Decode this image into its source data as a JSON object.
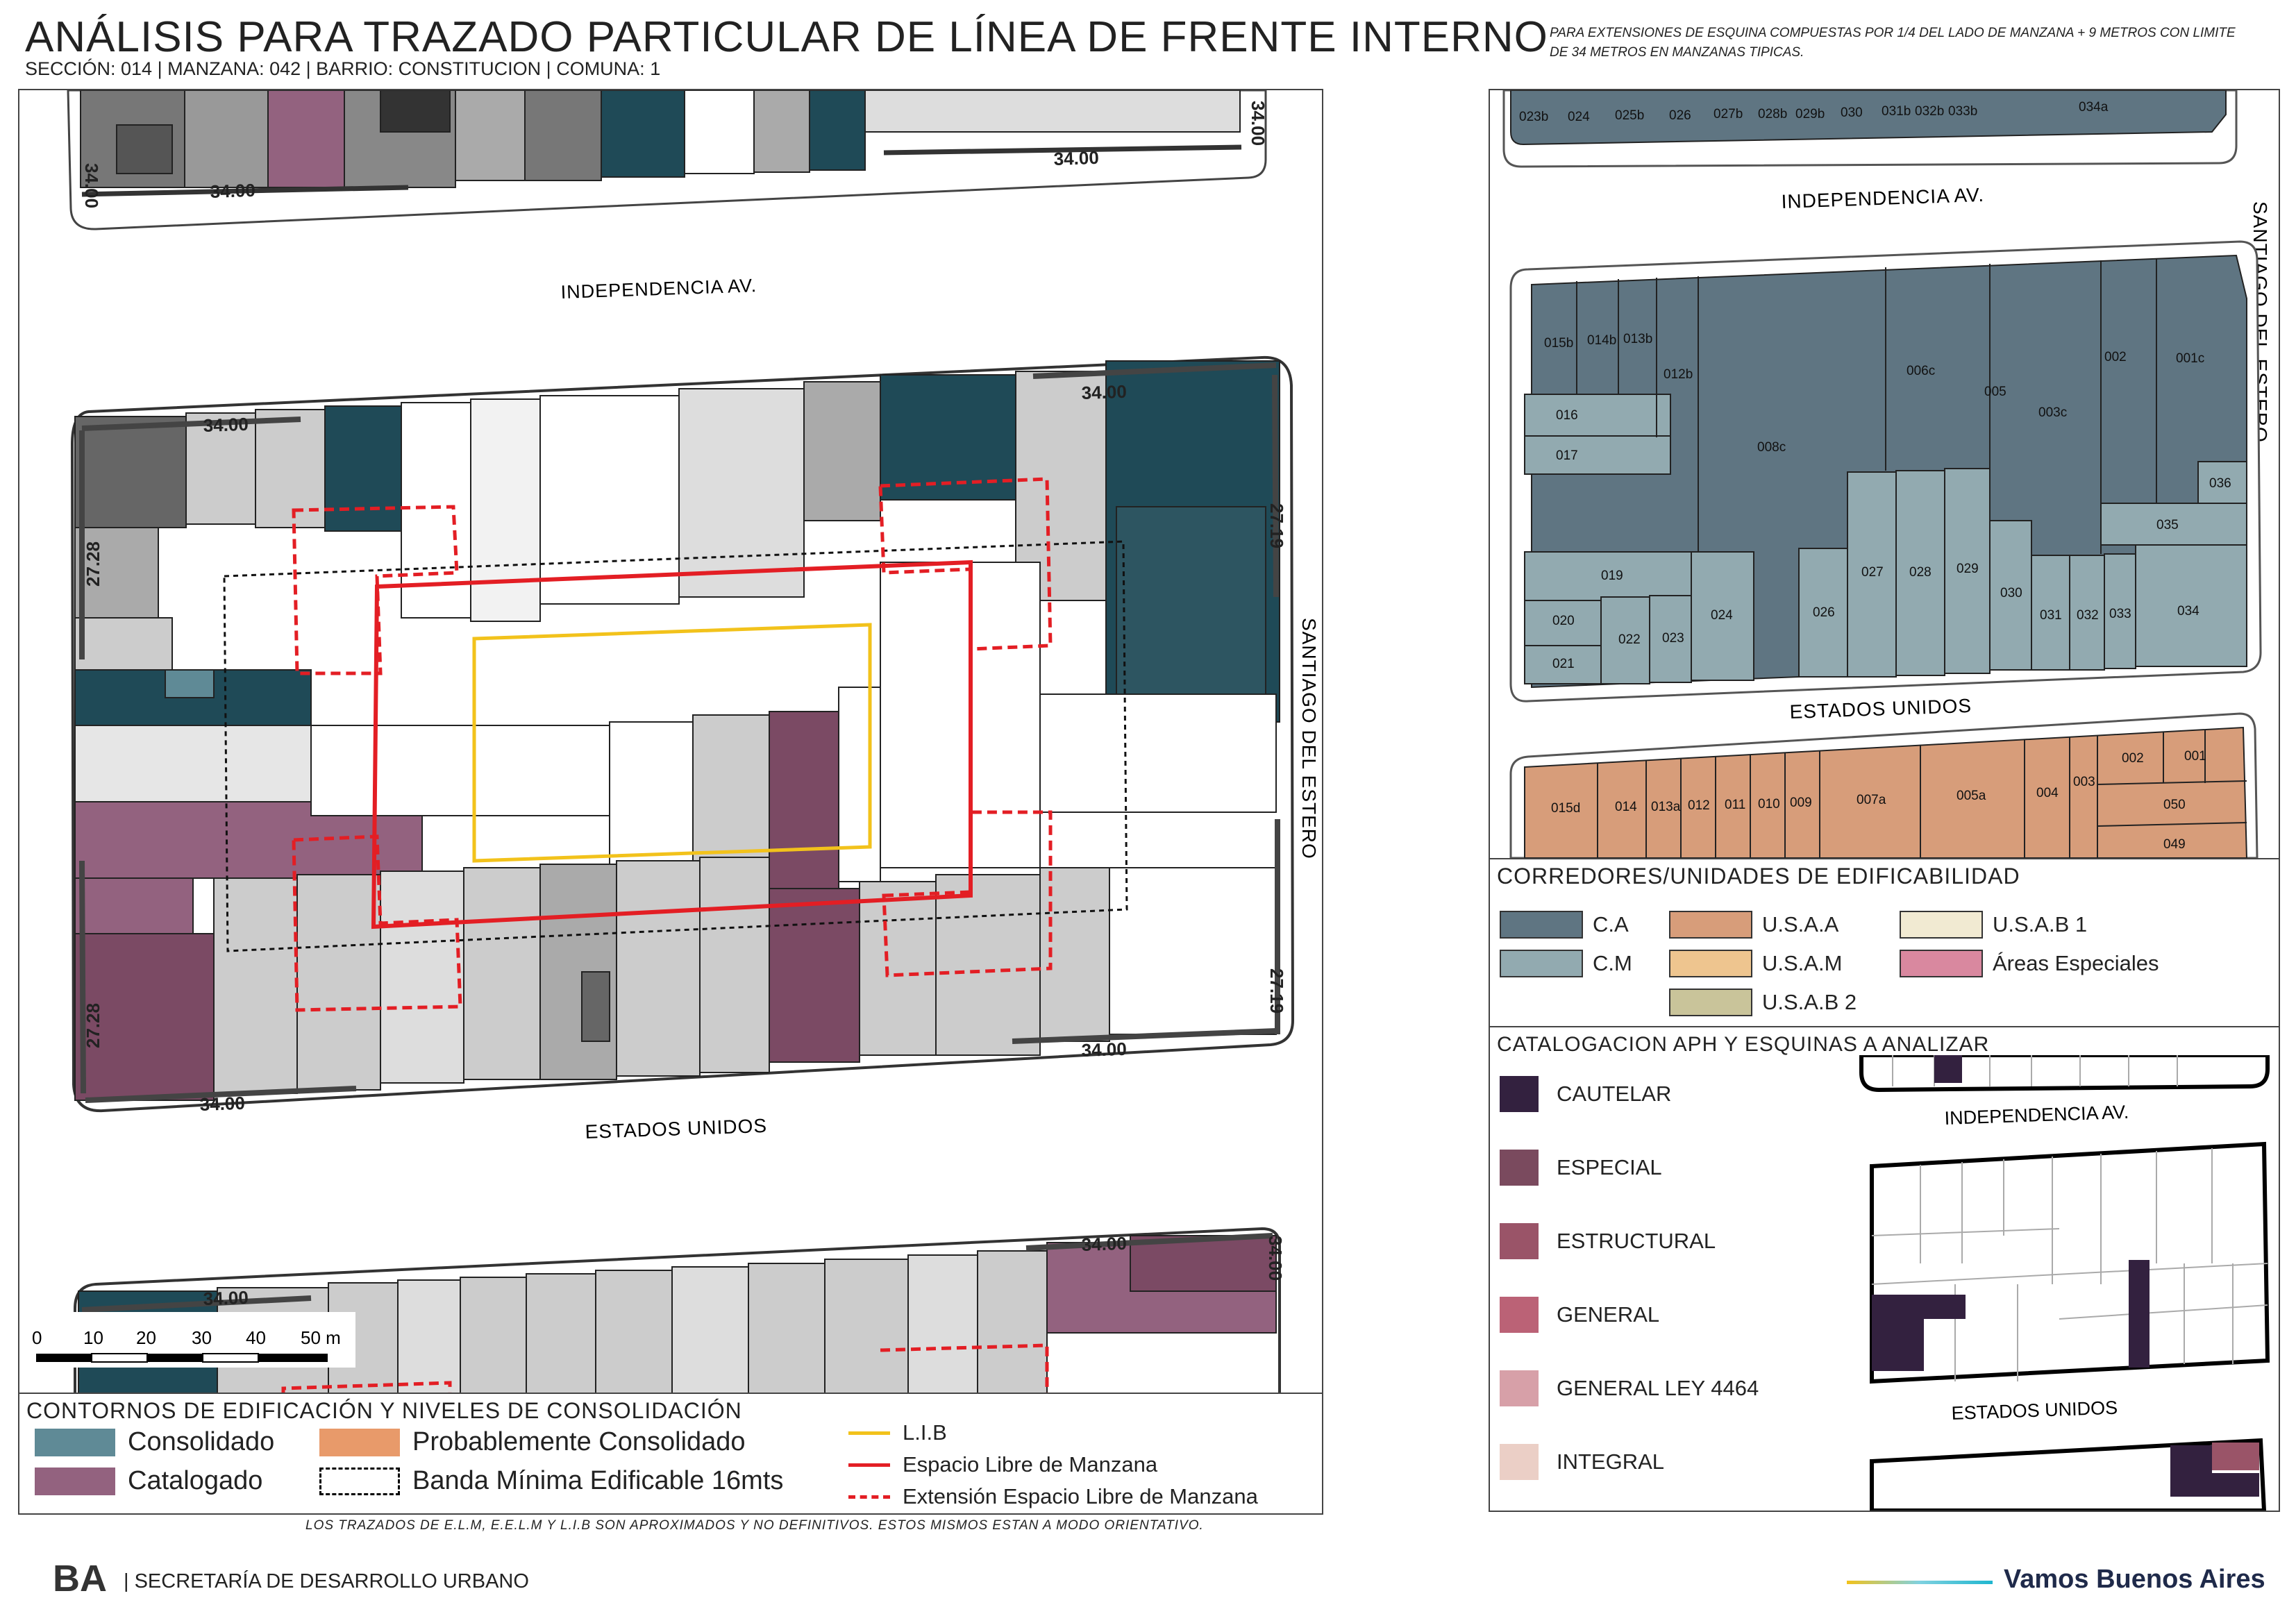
{
  "header": {
    "title": "ANÁLISIS PARA TRAZADO PARTICULAR DE LÍNEA DE FRENTE INTERNO",
    "subtitle": "SECCIÓN: 014 |  MANZANA: 042 | BARRIO: CONSTITUCION | COMUNA: 1",
    "note": "PARA EXTENSIONES DE ESQUINA COMPUESTAS POR 1/4 DEL LADO DE MANZANA + 9 METROS CON LIMITE DE 34 METROS EN MANZANAS TIPICAS."
  },
  "main_map": {
    "streets": {
      "north": "INDEPENDENCIA AV.",
      "south": "ESTADOS UNIDOS",
      "east": "SANTIAGO DEL ESTERO"
    },
    "dimension_labels": {
      "d3400": "34.00",
      "d2728": "27.28",
      "d2719": "27.19"
    },
    "scale_labels": [
      "0",
      "10",
      "20",
      "30",
      "40",
      "50 m"
    ]
  },
  "legend_contours": {
    "title": "CONTORNOS DE EDIFICACIÓN Y NIVELES DE CONSOLIDACIÓN",
    "items": [
      {
        "label": "Consolidado",
        "color": "#5f8a96"
      },
      {
        "label": "Probablemente Consolidado",
        "color": "#e89a6a"
      },
      {
        "label": "Catalogado",
        "color": "#93627f"
      },
      {
        "label": "Banda Mínima Edificable 16mts",
        "color": "#000000"
      }
    ],
    "lines": [
      {
        "label": "L.I.B",
        "color": "#f2c21b"
      },
      {
        "label": "Espacio Libre de Manzana",
        "color": "#e31e24"
      },
      {
        "label": "Extensión Espacio Libre de Manzana",
        "color": "#e31e24"
      }
    ]
  },
  "right_map": {
    "streets": {
      "north": "INDEPENDENCIA AV.",
      "south": "ESTADOS UNIDOS",
      "east": "SANTIAGO DEL ESTERO"
    },
    "top_block_parcels": [
      "023b",
      "024",
      "025b",
      "026",
      "027b",
      "028b",
      "029b",
      "030",
      "031b",
      "032b",
      "033b",
      "034a"
    ],
    "main_block_parcels": [
      "015b",
      "014b",
      "013b",
      "012b",
      "008c",
      "006c",
      "005",
      "003c",
      "002",
      "001c",
      "016",
      "017",
      "036",
      "035",
      "019",
      "020",
      "021",
      "022",
      "023",
      "024",
      "026",
      "027",
      "028",
      "029",
      "030",
      "031",
      "032",
      "033",
      "034"
    ],
    "bottom_block_parcels": [
      "015d",
      "014",
      "013a",
      "012",
      "011",
      "010",
      "009",
      "007a",
      "005a",
      "004",
      "003",
      "002",
      "001",
      "050",
      "049"
    ]
  },
  "legend_corridors": {
    "title": "CORREDORES/UNIDADES DE EDIFICABILIDAD",
    "items": [
      {
        "label": "C.A",
        "color": "#5f7582"
      },
      {
        "label": "C.M",
        "color": "#92aab0"
      },
      {
        "label": "U.S.A.A",
        "color": "#d79d7a"
      },
      {
        "label": "U.S.A.M",
        "color": "#eec58f"
      },
      {
        "label": "U.S.A.B 2",
        "color": "#c9c49a"
      },
      {
        "label": "U.S.A.B 1",
        "color": "#f1ead2"
      },
      {
        "label": "Áreas Especiales",
        "color": "#d9889f"
      }
    ]
  },
  "legend_aph": {
    "title": "CATALOGACION APH Y ESQUINAS A ANALIZAR",
    "items": [
      {
        "label": "CAUTELAR",
        "color": "#33213f"
      },
      {
        "label": "ESPECIAL",
        "color": "#7a4a5e"
      },
      {
        "label": "ESTRUCTURAL",
        "color": "#9a5468"
      },
      {
        "label": "GENERAL",
        "color": "#bb6276"
      },
      {
        "label": "GENERAL LEY 4464",
        "color": "#d7a0a8"
      },
      {
        "label": "INTEGRAL",
        "color": "#ebcfc6"
      }
    ],
    "mini_streets": {
      "north": "INDEPENDENCIA AV.",
      "south": "ESTADOS UNIDOS"
    }
  },
  "footer": {
    "disclaimer": "LOS TRAZADOS DE E.L.M, E.E.L.M Y L.I.B SON APROXIMADOS Y NO DEFINITIVOS. ESTOS MISMOS ESTAN A MODO ORIENTATIVO.",
    "logo_text": "BA",
    "org": "| SECRETARÍA DE DESARROLLO URBANO",
    "slogan": "Vamos Buenos Aires"
  }
}
